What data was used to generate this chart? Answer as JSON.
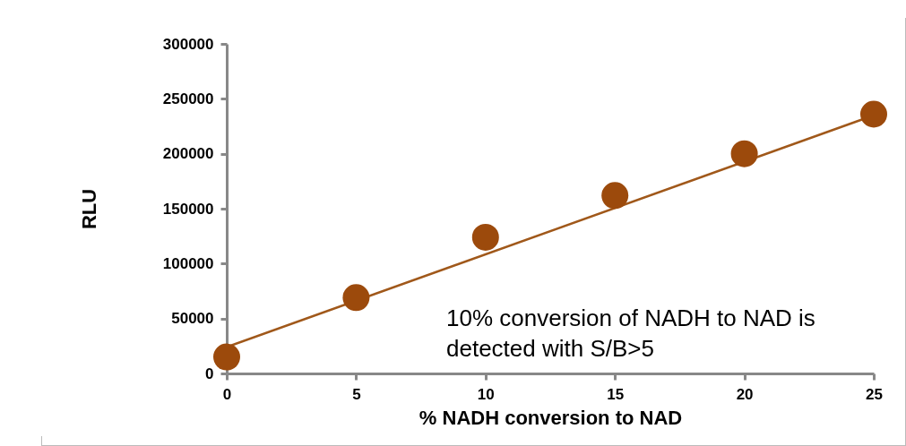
{
  "chart_data": {
    "type": "scatter",
    "xlabel": "% NADH conversion to NAD",
    "ylabel": "RLU",
    "x": [
      0,
      5,
      10,
      15,
      20,
      25
    ],
    "series": [
      {
        "color": "#9c4a0c",
        "marker": "circle",
        "values": [
          15000,
          69000,
          124000,
          162000,
          200000,
          236000
        ]
      },
      {
        "type": "line",
        "marker": "none",
        "color": "#a0581a",
        "x": [
          0,
          25
        ],
        "values": [
          24000,
          235000
        ]
      }
    ],
    "xlim": [
      0,
      25
    ],
    "xticks": [
      0,
      5,
      10,
      15,
      20,
      25
    ],
    "ylim": [
      0,
      300000
    ],
    "yticks": [
      0,
      50000,
      100000,
      150000,
      200000,
      250000,
      300000
    ],
    "grid": false,
    "annotations": [
      "10% conversion of NADH to NAD is detected with S/B>5"
    ]
  }
}
